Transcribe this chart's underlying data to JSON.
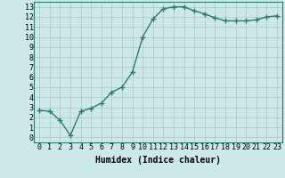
{
  "x": [
    0,
    1,
    2,
    3,
    4,
    5,
    6,
    7,
    8,
    9,
    10,
    11,
    12,
    13,
    14,
    15,
    16,
    17,
    18,
    19,
    20,
    21,
    22,
    23
  ],
  "y": [
    2.7,
    2.6,
    1.7,
    0.2,
    2.6,
    2.9,
    3.4,
    4.5,
    5.0,
    6.5,
    10.0,
    11.8,
    12.8,
    13.0,
    13.0,
    12.6,
    12.3,
    11.9,
    11.6,
    11.6,
    11.6,
    11.7,
    12.0,
    12.1
  ],
  "line_color": "#2d7d6e",
  "marker": "+",
  "marker_size": 4,
  "bg_color": "#cce8e8",
  "grid_color": "#b0cccc",
  "xlabel": "Humidex (Indice chaleur)",
  "xlim": [
    -0.5,
    23.5
  ],
  "ylim": [
    -0.5,
    13.5
  ],
  "xticks": [
    0,
    1,
    2,
    3,
    4,
    5,
    6,
    7,
    8,
    9,
    10,
    11,
    12,
    13,
    14,
    15,
    16,
    17,
    18,
    19,
    20,
    21,
    22,
    23
  ],
  "yticks": [
    0,
    1,
    2,
    3,
    4,
    5,
    6,
    7,
    8,
    9,
    10,
    11,
    12,
    13
  ],
  "xlabel_fontsize": 7,
  "tick_fontsize": 6,
  "line_width": 1.0
}
